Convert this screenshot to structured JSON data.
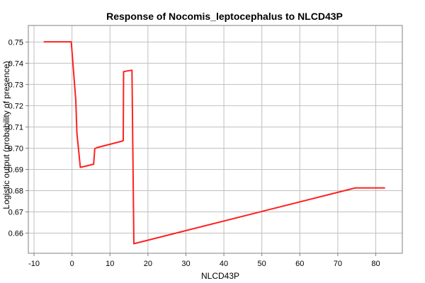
{
  "chart_data": {
    "type": "line",
    "title": "Response of Nocomis_leptocephalus to NLCD43P",
    "xlabel": "NLCD43P",
    "ylabel": "Logistic output (probability of presence)",
    "xlim": [
      -11.5,
      87
    ],
    "ylim": [
      0.6505,
      0.7578
    ],
    "x_ticks": [
      -10,
      0,
      10,
      20,
      30,
      40,
      50,
      60,
      70,
      80
    ],
    "y_ticks": [
      0.66,
      0.67,
      0.68,
      0.69,
      0.7,
      0.71,
      0.72,
      0.73,
      0.74,
      0.75
    ],
    "x_tick_labels": [
      "-10",
      "0",
      "10",
      "20",
      "30",
      "40",
      "50",
      "60",
      "70",
      "80"
    ],
    "y_tick_labels": [
      "0.66",
      "0.67",
      "0.68",
      "0.69",
      "0.70",
      "0.71",
      "0.72",
      "0.73",
      "0.74",
      "0.75"
    ],
    "grid": true,
    "legend": "none",
    "series": [
      {
        "color": "#ff2020",
        "x": [
          -7.3,
          -0.2,
          1.0,
          1.3,
          2.2,
          3.5,
          5.7,
          6.0,
          6.6,
          13.1,
          13.5,
          13.6,
          14.0,
          15.6,
          15.8,
          16.3,
          74.6,
          82.3
        ],
        "y": [
          0.7501,
          0.7501,
          0.7225,
          0.707,
          0.691,
          0.6915,
          0.6925,
          0.6998,
          0.7003,
          0.7033,
          0.7036,
          0.736,
          0.7362,
          0.7367,
          0.7367,
          0.655,
          0.6813,
          0.6813
        ]
      }
    ]
  }
}
